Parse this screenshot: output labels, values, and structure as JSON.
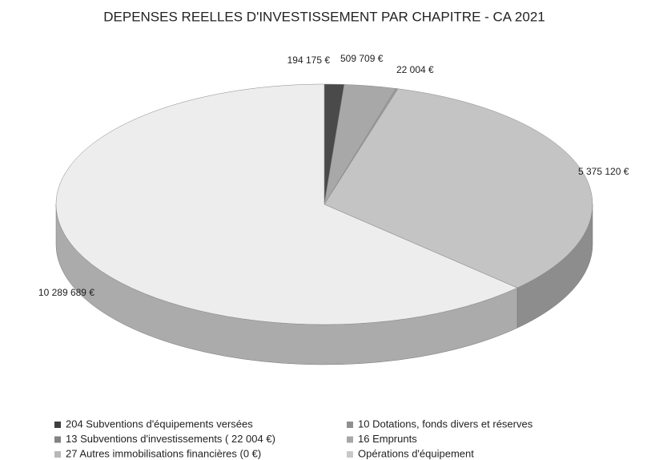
{
  "chart_data": {
    "type": "pie",
    "title": "DEPENSES REELLES D'INVESTISSEMENT PAR CHAPITRE - CA 2021",
    "categories": [
      "204 Subventions d'équipements versées",
      "10 Dotations, fonds divers et réserves",
      "13 Subventions d'investissements ( 22 004 €)",
      "16 Emprunts",
      "27 Autres immobilisations financières (0 €)",
      "Opérations d'équipement"
    ],
    "values": [
      194175,
      509709,
      22004,
      5375120,
      0,
      10289689
    ],
    "value_labels": [
      "194 175 €",
      "509 709 €",
      "22 004 €",
      "5 375 120 €",
      null,
      "10 289 689 €"
    ],
    "colors": [
      "#4a4a4a",
      "#a8a8a8",
      "#9a9a9a",
      "#c4c4c4",
      "#d8d8d8",
      "#ededed"
    ],
    "legend": "bottom"
  }
}
